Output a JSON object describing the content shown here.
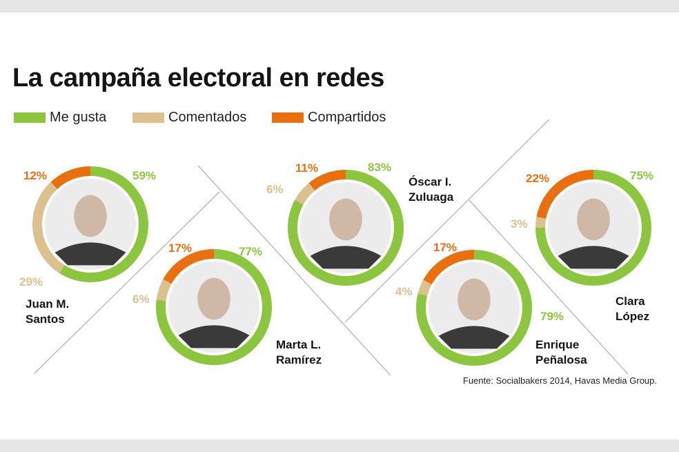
{
  "title": "La campaña electoral en redes",
  "legend": [
    {
      "label": "Me gusta",
      "color": "#8cc63f"
    },
    {
      "label": "Comentados",
      "color": "#dcc08d"
    },
    {
      "label": "Compartidos",
      "color": "#e96f0f"
    }
  ],
  "source": "Fuente: Socialbakers 2014, Havas Media Group.",
  "chart_data": {
    "type": "pie",
    "variant": "donut",
    "series_names": [
      "Me gusta",
      "Comentados",
      "Compartidos"
    ],
    "colors": {
      "Me gusta": "#8cc63f",
      "Comentados": "#dcc08d",
      "Compartidos": "#e96f0f"
    },
    "candidates": [
      {
        "name": [
          "Juan M.",
          "Santos"
        ],
        "values": {
          "Me gusta": 59,
          "Comentados": 29,
          "Compartidos": 12
        },
        "labels": {
          "Me gusta": "59%",
          "Comentados": "29%",
          "Compartidos": "12%"
        }
      },
      {
        "name": [
          "Marta L.",
          "Ramírez"
        ],
        "values": {
          "Me gusta": 77,
          "Comentados": 6,
          "Compartidos": 17
        },
        "labels": {
          "Me gusta": "77%",
          "Comentados": "6%",
          "Compartidos": "17%"
        }
      },
      {
        "name": [
          "Óscar I.",
          "Zuluaga"
        ],
        "values": {
          "Me gusta": 83,
          "Comentados": 6,
          "Compartidos": 11
        },
        "labels": {
          "Me gusta": "83%",
          "Comentados": "6%",
          "Compartidos": "11%"
        }
      },
      {
        "name": [
          "Enrique",
          "Peñalosa"
        ],
        "values": {
          "Me gusta": 79,
          "Comentados": 4,
          "Compartidos": 17
        },
        "labels": {
          "Me gusta": "79%",
          "Comentados": "4%",
          "Compartidos": "17%"
        }
      },
      {
        "name": [
          "Clara",
          "López"
        ],
        "values": {
          "Me gusta": 75,
          "Comentados": 3,
          "Compartidos": 22
        },
        "labels": {
          "Me gusta": "75%",
          "Comentados": "3%",
          "Compartidos": "22%"
        }
      }
    ]
  }
}
